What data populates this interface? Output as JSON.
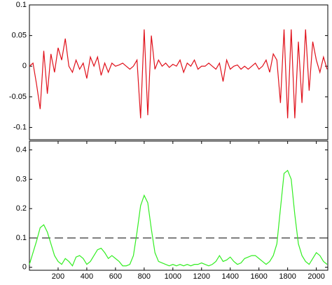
{
  "chart_data": [
    {
      "type": "line",
      "color": "#e0101a",
      "x": [
        0,
        25,
        50,
        75,
        100,
        125,
        150,
        175,
        200,
        225,
        250,
        275,
        300,
        325,
        350,
        375,
        400,
        425,
        450,
        475,
        500,
        525,
        550,
        575,
        600,
        625,
        650,
        675,
        700,
        725,
        750,
        775,
        800,
        825,
        850,
        875,
        900,
        925,
        950,
        975,
        1000,
        1025,
        1050,
        1075,
        1100,
        1125,
        1150,
        1175,
        1200,
        1225,
        1250,
        1275,
        1300,
        1325,
        1350,
        1375,
        1400,
        1425,
        1450,
        1475,
        1500,
        1525,
        1550,
        1575,
        1600,
        1625,
        1650,
        1675,
        1700,
        1725,
        1750,
        1775,
        1800,
        1825,
        1850,
        1875,
        1900,
        1925,
        1950,
        1975,
        2000,
        2025,
        2050,
        2075
      ],
      "values": [
        0,
        0.005,
        -0.03,
        -0.07,
        0.025,
        -0.045,
        0.02,
        -0.01,
        0.03,
        0.01,
        0.045,
        0,
        -0.01,
        0.01,
        -0.005,
        0.005,
        -0.02,
        0.015,
        0,
        0.015,
        -0.015,
        0.005,
        -0.01,
        0.005,
        0,
        0.002,
        0.005,
        0,
        -0.005,
        0,
        0.01,
        -0.085,
        0.06,
        -0.08,
        0.05,
        -0.005,
        0.01,
        0,
        0.005,
        -0.002,
        0.003,
        0,
        0.01,
        -0.01,
        0.005,
        0,
        0.01,
        -0.005,
        0,
        0,
        0.005,
        0,
        -0.005,
        0.005,
        -0.025,
        0.01,
        -0.005,
        0,
        0.002,
        -0.005,
        0,
        -0.005,
        0,
        0.005,
        -0.005,
        0,
        0.01,
        -0.01,
        0.02,
        0.01,
        -0.06,
        0.06,
        -0.085,
        0.06,
        -0.085,
        0.04,
        -0.06,
        0.06,
        -0.04,
        0.04,
        0.01,
        -0.01,
        0.015,
        -0.005
      ],
      "xlim": [
        0,
        2080
      ],
      "ylim": [
        -0.12,
        0.1
      ],
      "yticks": [
        -0.1,
        -0.05,
        0,
        0.05,
        0.1
      ]
    },
    {
      "type": "line",
      "color": "#33ee22",
      "x": [
        0,
        25,
        50,
        75,
        100,
        125,
        150,
        175,
        200,
        225,
        250,
        275,
        300,
        325,
        350,
        375,
        400,
        425,
        450,
        475,
        500,
        525,
        550,
        575,
        600,
        625,
        650,
        675,
        700,
        725,
        750,
        775,
        800,
        825,
        850,
        875,
        900,
        925,
        950,
        975,
        1000,
        1025,
        1050,
        1075,
        1100,
        1125,
        1150,
        1175,
        1200,
        1225,
        1250,
        1275,
        1300,
        1325,
        1350,
        1375,
        1400,
        1425,
        1450,
        1475,
        1500,
        1525,
        1550,
        1575,
        1600,
        1625,
        1650,
        1675,
        1700,
        1725,
        1750,
        1775,
        1800,
        1825,
        1850,
        1875,
        1900,
        1925,
        1950,
        1975,
        2000,
        2025,
        2050,
        2075
      ],
      "values": [
        0.01,
        0.05,
        0.09,
        0.135,
        0.145,
        0.12,
        0.08,
        0.04,
        0.02,
        0.01,
        0.03,
        0.02,
        0.005,
        0.035,
        0.04,
        0.03,
        0.01,
        0.02,
        0.04,
        0.06,
        0.065,
        0.05,
        0.03,
        0.04,
        0.03,
        0.02,
        0.005,
        0.005,
        0.01,
        0.04,
        0.12,
        0.21,
        0.245,
        0.22,
        0.13,
        0.05,
        0.02,
        0.015,
        0.01,
        0.005,
        0.01,
        0.005,
        0.01,
        0.005,
        0.01,
        0.005,
        0.01,
        0.01,
        0.015,
        0.01,
        0.005,
        0.01,
        0.02,
        0.04,
        0.02,
        0.025,
        0.035,
        0.02,
        0.01,
        0.015,
        0.03,
        0.035,
        0.04,
        0.04,
        0.03,
        0.02,
        0.01,
        0.02,
        0.04,
        0.08,
        0.2,
        0.32,
        0.33,
        0.3,
        0.18,
        0.08,
        0.04,
        0.02,
        0.01,
        0.03,
        0.05,
        0.04,
        0.02,
        0.01
      ],
      "threshold": 0.1,
      "xlim": [
        0,
        2080
      ],
      "xticks": [
        200,
        400,
        600,
        800,
        1000,
        1200,
        1400,
        1600,
        1800,
        2000
      ],
      "ylim": [
        -0.01,
        0.43
      ],
      "yticks": [
        0,
        0.1,
        0.2,
        0.3,
        0.4
      ]
    }
  ]
}
